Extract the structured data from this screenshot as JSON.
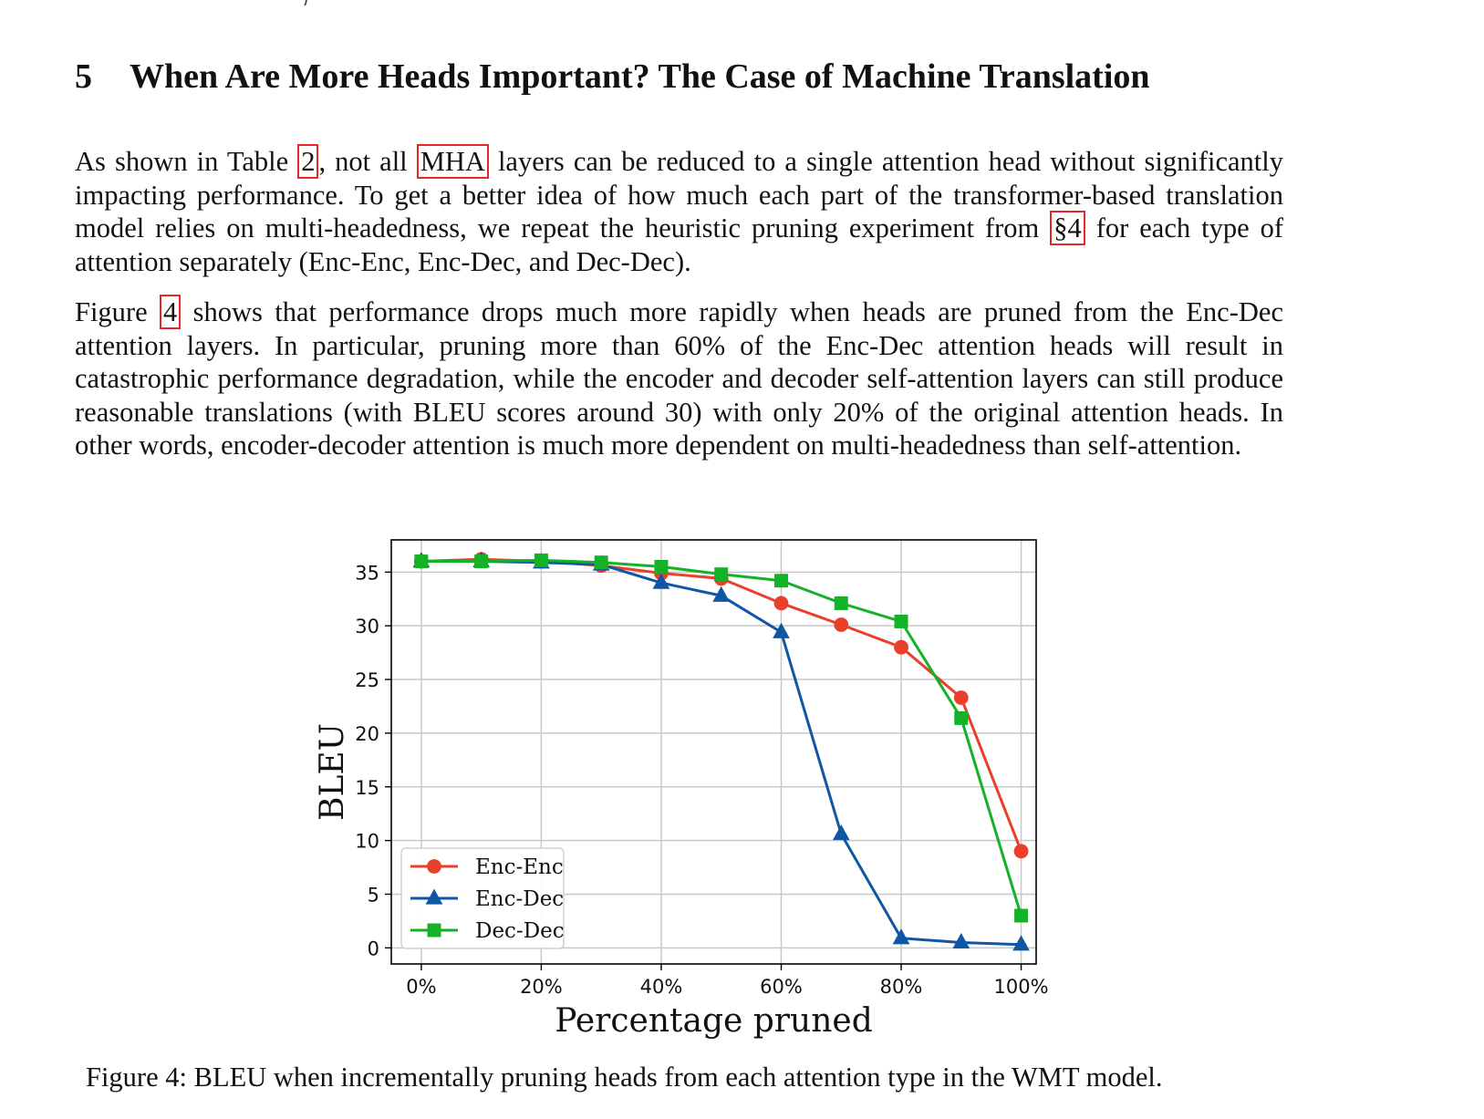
{
  "section": {
    "number": "5",
    "title": "When Are More Heads Important? The Case of Machine Translation"
  },
  "paragraph1": {
    "t1": "As shown in Table ",
    "ref_table": "2",
    "t2": ", not all ",
    "ref_mha": "MHA",
    "t3": " layers can be reduced to a single attention head without significantly impacting performance. To get a better idea of how much each part of the transformer-based translation model relies on multi-headedness, we repeat the heuristic pruning experiment from ",
    "ref_sec": "§4",
    "t4": " for each type of attention separately (Enc-Enc, Enc-Dec, and Dec-Dec)."
  },
  "paragraph2": {
    "t1": "Figure ",
    "ref_fig": "4",
    "t2": " shows that performance drops much more rapidly when heads are pruned from the Enc-Dec attention layers. In particular, pruning more than 60% of the Enc-Dec attention heads will result in catastrophic performance degradation, while the encoder and decoder self-attention layers can still produce reasonable translations (with BLEU scores around 30) with only 20% of the original attention heads. In other words, encoder-decoder attention is much more dependent on multi-headedness than self-attention."
  },
  "caption": "Figure 4:  BLEU when incrementally pruning heads from each attention type in the WMT model.",
  "chart_data": {
    "type": "line",
    "x": [
      0,
      10,
      20,
      30,
      40,
      50,
      60,
      70,
      80,
      90,
      100
    ],
    "xticks": [
      "0%",
      "20%",
      "40%",
      "60%",
      "80%",
      "100%"
    ],
    "xtick_values": [
      0,
      20,
      40,
      60,
      80,
      100
    ],
    "yticks": [
      "0",
      "5",
      "10",
      "15",
      "20",
      "25",
      "30",
      "35"
    ],
    "ytick_values": [
      0,
      5,
      10,
      15,
      20,
      25,
      30,
      35
    ],
    "xlabel": "Percentage pruned",
    "ylabel": "BLEU",
    "xlim": [
      -5,
      102.5
    ],
    "ylim": [
      -1.5,
      38
    ],
    "grid": true,
    "legend_position": "lower-left",
    "series": [
      {
        "name": "Enc-Enc",
        "color": "#e8402a",
        "marker": "circle",
        "values": [
          36.0,
          36.2,
          36.0,
          35.6,
          34.9,
          34.4,
          32.1,
          30.1,
          28.0,
          23.3,
          9.0
        ]
      },
      {
        "name": "Enc-Dec",
        "color": "#0f56a5",
        "marker": "triangle",
        "values": [
          36.0,
          36.0,
          35.9,
          35.7,
          34.0,
          32.8,
          29.4,
          10.6,
          0.9,
          0.5,
          0.3
        ]
      },
      {
        "name": "Dec-Dec",
        "color": "#14b327",
        "marker": "square",
        "values": [
          36.0,
          36.0,
          36.1,
          35.9,
          35.5,
          34.8,
          34.2,
          32.1,
          30.4,
          21.4,
          3.0
        ]
      }
    ]
  }
}
